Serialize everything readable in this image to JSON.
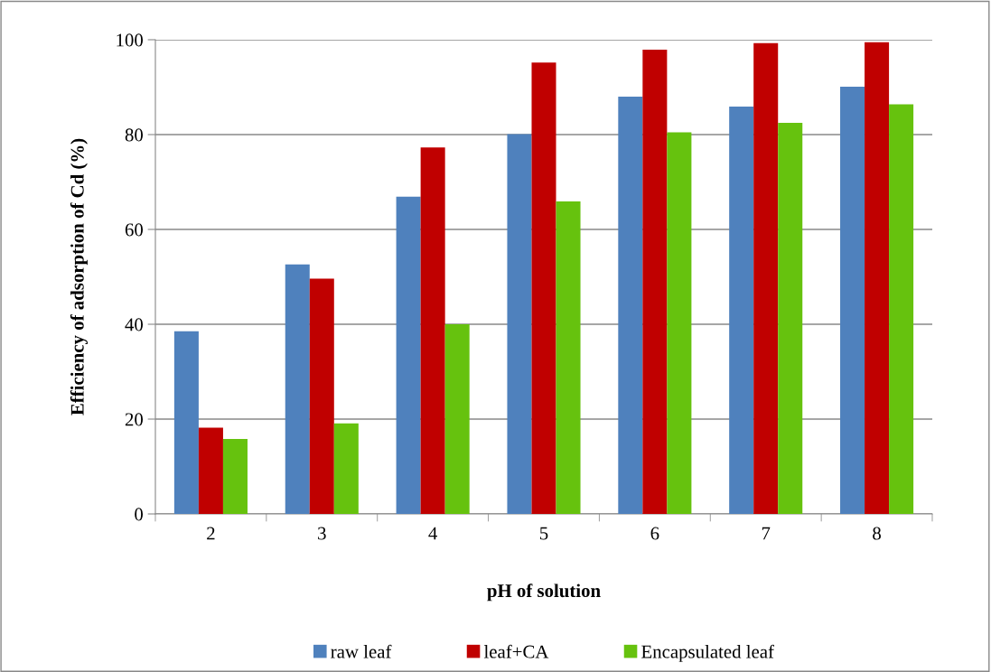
{
  "chart_data": {
    "type": "bar",
    "xlabel": "pH of solution",
    "ylabel": "Efficiency of adsorption of Cd (%)",
    "categories": [
      "2",
      "3",
      "4",
      "5",
      "6",
      "7",
      "8"
    ],
    "series": [
      {
        "name": "raw leaf",
        "color": "#4f81bd",
        "values": [
          38.5,
          52.6,
          66.9,
          80.1,
          88.0,
          85.9,
          90.1
        ]
      },
      {
        "name": "leaf+CA",
        "color": "#c00000",
        "values": [
          18.2,
          49.6,
          77.3,
          95.2,
          97.9,
          99.3,
          99.5
        ]
      },
      {
        "name": "Encapsulated leaf",
        "color": "#66c20e",
        "values": [
          15.8,
          19.1,
          40.0,
          65.9,
          80.5,
          82.5,
          86.4
        ]
      }
    ],
    "ylim": [
      0,
      100
    ],
    "yticks": [
      0,
      20,
      40,
      60,
      80,
      100
    ],
    "grid": "y",
    "legend": "bottom"
  }
}
